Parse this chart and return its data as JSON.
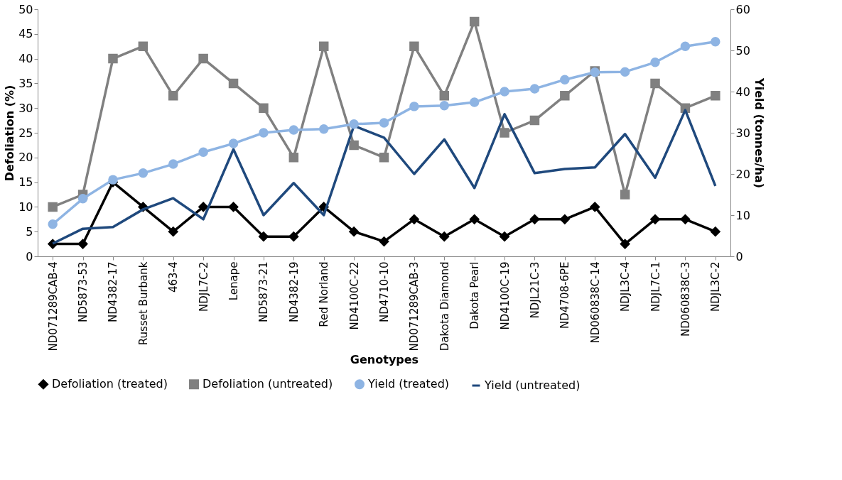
{
  "chart_data": {
    "type": "line",
    "xlabel": "Genotypes",
    "ylabel": "Defoliation (%)",
    "y2label": "Yield (tonnes/ha)",
    "categories": [
      "ND071289CAB-4",
      "ND5873-53",
      "ND4382-17",
      "Russet Burbank",
      "463-4",
      "NDJL7C-2",
      "Lenape",
      "ND5873-21",
      "ND4382-19",
      "Red Norland",
      "ND4100C-22",
      "ND4710-10",
      "ND071289CAB-3",
      "Dakota Diamond",
      "Dakota Pearl",
      "ND4100C-19",
      "NDJL21C-3",
      "ND4708-6PE",
      "ND060838C-14",
      "NDJL3C-4",
      "NDJL7C-1",
      "ND060838C-3",
      "NDJL3C-2"
    ],
    "series": [
      {
        "name": "Defoliation (treated)",
        "color": "#000000",
        "marker": "diamond",
        "values": [
          2.5,
          2.5,
          15,
          10,
          5,
          10,
          10,
          4,
          4,
          10,
          5,
          3,
          7.5,
          4,
          7.5,
          4,
          7.5,
          7.5,
          10,
          2.5,
          7.5,
          7.5,
          5
        ]
      },
      {
        "name": "Defoliation (untreated)",
        "color": "#808080",
        "marker": "square",
        "values": [
          10,
          12.5,
          40,
          42.5,
          32.5,
          40,
          35,
          30,
          20,
          42.5,
          22.5,
          20,
          42.5,
          32.5,
          47.5,
          25,
          27.5,
          32.5,
          37.5,
          12.5,
          35,
          30,
          32.5
        ]
      },
      {
        "name": "Yield (treated)",
        "color": "#8eb4e3",
        "marker": "circle",
        "axis": "y2",
        "values": [
          7.8,
          14,
          18.6,
          20.2,
          22.4,
          25.3,
          27.4,
          30,
          30.7,
          30.9,
          32.1,
          32.4,
          36.4,
          36.6,
          37.4,
          40,
          40.7,
          42.9,
          44.7,
          44.8,
          47.1,
          51,
          52.1
        ]
      },
      {
        "name": "Yield (untreated)",
        "color": "#1f497d",
        "marker": "none",
        "axis": "y2",
        "values": [
          3.1,
          6.7,
          7.1,
          11.4,
          14.1,
          9,
          26,
          10,
          17.8,
          10,
          31.7,
          28.8,
          20,
          28.4,
          16.6,
          34.5,
          20.2,
          21.2,
          21.6,
          29.7,
          19.1,
          35.5,
          17.1
        ]
      }
    ],
    "ylim": [
      0,
      50
    ],
    "yticks": [
      0,
      5,
      10,
      15,
      20,
      25,
      30,
      35,
      40,
      45,
      50
    ],
    "y2lim": [
      0,
      60
    ],
    "y2ticks": [
      0,
      10,
      20,
      30,
      40,
      50,
      60
    ],
    "grid": false,
    "legend": "bottom",
    "line_style": "solid"
  }
}
